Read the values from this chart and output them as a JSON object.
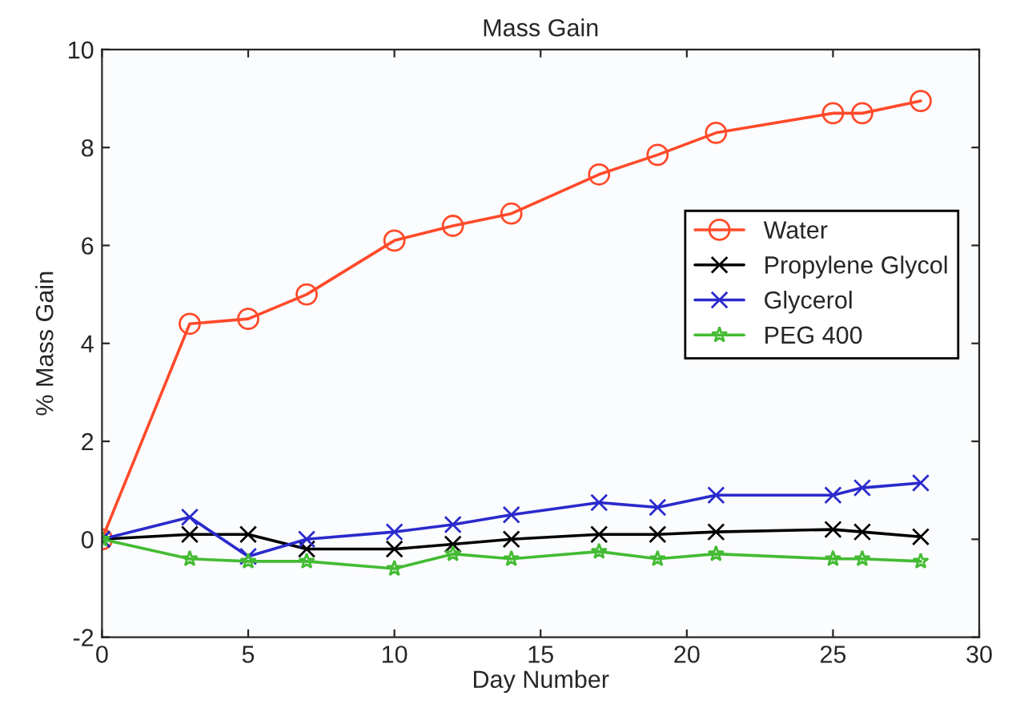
{
  "chart_data": {
    "type": "line",
    "title": "Mass Gain",
    "xlabel": "Day Number",
    "ylabel": "% Mass Gain",
    "x": [
      0,
      3,
      5,
      7,
      10,
      12,
      14,
      17,
      19,
      21,
      25,
      26,
      28
    ],
    "series": [
      {
        "name": "Water",
        "color": "#ff4a2a",
        "marker": "circle",
        "values": [
          0,
          4.4,
          4.5,
          5.0,
          6.1,
          6.4,
          6.65,
          7.45,
          7.85,
          8.3,
          8.7,
          8.7,
          8.95
        ]
      },
      {
        "name": "Propylene Glycol",
        "color": "#000000",
        "marker": "cross",
        "values": [
          0,
          0.1,
          0.1,
          -0.2,
          -0.2,
          -0.1,
          0,
          0.1,
          0.1,
          0.15,
          0.2,
          0.15,
          0.05
        ]
      },
      {
        "name": "Glycerol",
        "color": "#2a2acc",
        "marker": "cross",
        "values": [
          0,
          0.45,
          -0.35,
          0,
          0.15,
          0.3,
          0.5,
          0.75,
          0.65,
          0.9,
          0.9,
          1.05,
          1.15
        ]
      },
      {
        "name": "PEG 400",
        "color": "#44bb33",
        "marker": "star",
        "values": [
          0,
          -0.4,
          -0.45,
          -0.45,
          -0.6,
          -0.3,
          -0.4,
          -0.25,
          -0.4,
          -0.3,
          -0.4,
          -0.4,
          -0.45
        ]
      }
    ],
    "xlim": [
      0,
      30
    ],
    "xticks": [
      0,
      5,
      10,
      15,
      20,
      25,
      30
    ],
    "ylim": [
      -2,
      10
    ],
    "yticks": [
      -2,
      0,
      2,
      4,
      6,
      8,
      10
    ],
    "grid": false,
    "legend": "right"
  }
}
